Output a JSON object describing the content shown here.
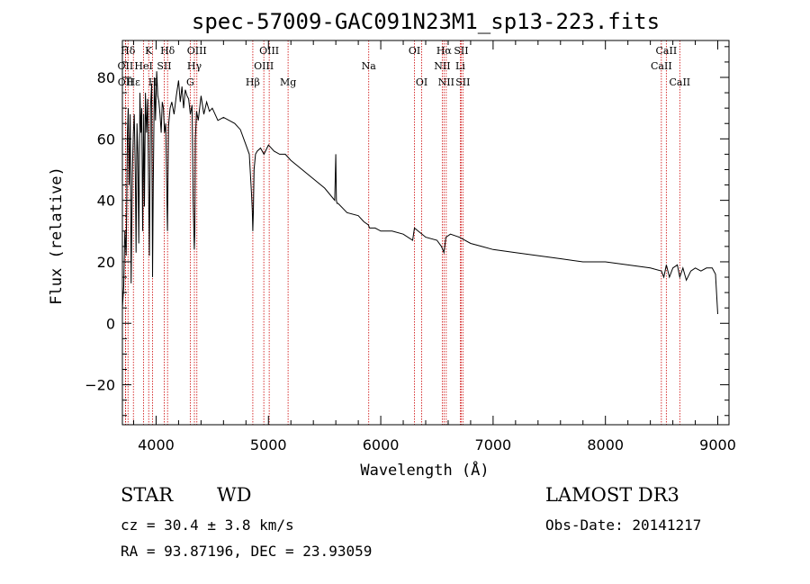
{
  "chart_data": {
    "type": "line",
    "title": "spec-57009-GAC091N23M1_sp13-223.fits",
    "xlabel": "Wavelength (Å)",
    "ylabel": "Flux (relative)",
    "xlim": [
      3700,
      9100
    ],
    "ylim": [
      -33,
      92
    ],
    "xticks": [
      4000,
      5000,
      6000,
      7000,
      8000,
      9000
    ],
    "yticks": [
      -20,
      0,
      20,
      40,
      60,
      80
    ],
    "grid": false,
    "series": [
      {
        "name": "spectrum",
        "x": [
          3700,
          3712,
          3722,
          3734,
          3745,
          3752,
          3760,
          3770,
          3778,
          3788,
          3798,
          3806,
          3815,
          3822,
          3830,
          3838,
          3846,
          3856,
          3864,
          3872,
          3880,
          3889,
          3896,
          3905,
          3915,
          3925,
          3933,
          3940,
          3950,
          3960,
          3968,
          3975,
          3985,
          3995,
          4005,
          4015,
          4025,
          4035,
          4045,
          4055,
          4065,
          4075,
          4085,
          4095,
          4101,
          4110,
          4125,
          4140,
          4160,
          4180,
          4200,
          4215,
          4230,
          4245,
          4260,
          4275,
          4290,
          4305,
          4320,
          4330,
          4340,
          4345,
          4350,
          4360,
          4375,
          4400,
          4425,
          4450,
          4475,
          4500,
          4550,
          4600,
          4650,
          4700,
          4750,
          4800,
          4830,
          4850,
          4856,
          4861,
          4866,
          4872,
          4885,
          4900,
          4930,
          4960,
          5000,
          5050,
          5100,
          5150,
          5200,
          5300,
          5400,
          5500,
          5590,
          5600,
          5605,
          5610,
          5620,
          5700,
          5800,
          5850,
          5890,
          5900,
          5950,
          6000,
          6100,
          6200,
          6284,
          6300,
          6400,
          6500,
          6540,
          6563,
          6580,
          6620,
          6700,
          6800,
          6900,
          7000,
          7200,
          7400,
          7600,
          7800,
          8000,
          8200,
          8400,
          8498,
          8520,
          8542,
          8570,
          8600,
          8640,
          8662,
          8690,
          8720,
          8760,
          8800,
          8850,
          8900,
          8950,
          8980,
          9000
        ],
        "values": [
          5,
          12,
          30,
          22,
          62,
          70,
          45,
          68,
          13,
          48,
          62,
          68,
          48,
          23,
          65,
          55,
          26,
          75,
          62,
          70,
          30,
          68,
          38,
          75,
          62,
          73,
          45,
          22,
          70,
          78,
          15,
          45,
          80,
          66,
          82,
          74,
          72,
          68,
          62,
          72,
          70,
          62,
          65,
          44,
          30,
          64,
          70,
          72,
          68,
          74,
          79,
          72,
          77,
          70,
          76,
          74,
          73,
          68,
          71,
          40,
          24,
          30,
          60,
          69,
          66,
          74,
          68,
          72,
          69,
          70,
          66,
          67,
          66,
          65,
          63,
          58,
          55,
          42,
          37,
          30,
          36,
          50,
          55,
          56,
          57,
          55,
          58,
          56,
          55,
          55,
          53,
          50,
          47,
          44,
          40,
          55,
          40,
          39,
          39,
          36,
          35,
          33,
          32,
          31,
          31,
          30,
          30,
          29,
          27,
          31,
          28,
          27,
          25,
          23,
          28,
          29,
          28,
          26,
          25,
          24,
          23,
          22,
          21,
          20,
          20,
          19,
          18,
          17,
          15,
          19,
          15,
          18,
          19,
          15,
          18,
          14,
          17,
          18,
          17,
          18,
          18,
          16,
          3
        ]
      }
    ],
    "lines": [
      {
        "label": "Hδ",
        "wave": 3750,
        "row": 0
      },
      {
        "label": "OII",
        "wave": 3727,
        "row": 1
      },
      {
        "label": "OII",
        "wave": 3729,
        "row": 2
      },
      {
        "label": "Hε",
        "wave": 3798,
        "row": 2
      },
      {
        "label": "K",
        "wave": 3934,
        "row": 0
      },
      {
        "label": "H",
        "wave": 3969,
        "row": 2
      },
      {
        "label": "HeI",
        "wave": 3889,
        "row": 1
      },
      {
        "label": "SII",
        "wave": 4072,
        "row": 1
      },
      {
        "label": "Hδ",
        "wave": 4102,
        "row": 0
      },
      {
        "label": "OIII",
        "wave": 4363,
        "row": 0
      },
      {
        "label": "Hγ",
        "wave": 4341,
        "row": 1
      },
      {
        "label": "G",
        "wave": 4304,
        "row": 2
      },
      {
        "label": "Hβ",
        "wave": 4861,
        "row": 2
      },
      {
        "label": "OIII",
        "wave": 5007,
        "row": 0
      },
      {
        "label": "OIII",
        "wave": 4959,
        "row": 1
      },
      {
        "label": "Mg",
        "wave": 5175,
        "row": 2
      },
      {
        "label": "Na",
        "wave": 5893,
        "row": 1
      },
      {
        "label": "OI",
        "wave": 6300,
        "row": 0
      },
      {
        "label": "OI",
        "wave": 6364,
        "row": 2
      },
      {
        "label": "Hα",
        "wave": 6563,
        "row": 0
      },
      {
        "label": "NII",
        "wave": 6548,
        "row": 1
      },
      {
        "label": "NII",
        "wave": 6583,
        "row": 2
      },
      {
        "label": "SII",
        "wave": 6716,
        "row": 0
      },
      {
        "label": "Li",
        "wave": 6708,
        "row": 1
      },
      {
        "label": "SII",
        "wave": 6731,
        "row": 2
      },
      {
        "label": "CaII",
        "wave": 8542,
        "row": 0
      },
      {
        "label": "CaII",
        "wave": 8498,
        "row": 1
      },
      {
        "label": "CaII",
        "wave": 8662,
        "row": 2
      }
    ]
  },
  "info": {
    "object_class": "STAR",
    "subclass": "WD",
    "survey": "LAMOST DR3",
    "redshift": "cz = 30.4 ± 3.8 km/s",
    "obs_date": "Obs-Date: 20141217",
    "coords": "RA =  93.87196, DEC =  23.93059"
  },
  "colors": {
    "spectrum": "#000000",
    "line_marker": "#cc0000",
    "axes": "#000000"
  }
}
